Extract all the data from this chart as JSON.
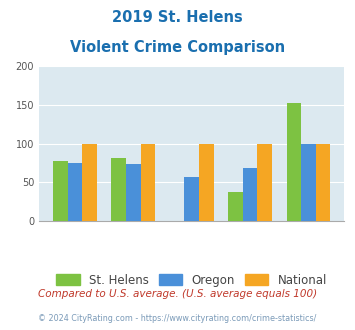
{
  "title_line1": "2019 St. Helens",
  "title_line2": "Violent Crime Comparison",
  "st_helens": [
    78,
    82,
    0,
    37,
    152
  ],
  "oregon": [
    75,
    73,
    57,
    68,
    99
  ],
  "national": [
    100,
    100,
    100,
    100,
    100
  ],
  "bar_colors": {
    "st_helens": "#7dc242",
    "oregon": "#4a90d9",
    "national": "#f5a623"
  },
  "ylim": [
    0,
    200
  ],
  "yticks": [
    0,
    50,
    100,
    150,
    200
  ],
  "background_color": "#dce9f0",
  "title_color": "#1a6faf",
  "legend_labels": [
    "St. Helens",
    "Oregon",
    "National"
  ],
  "footnote1": "Compared to U.S. average. (U.S. average equals 100)",
  "footnote2": "© 2024 CityRating.com - https://www.cityrating.com/crime-statistics/",
  "footnote1_color": "#c0392b",
  "footnote2_color": "#7a9ab8"
}
